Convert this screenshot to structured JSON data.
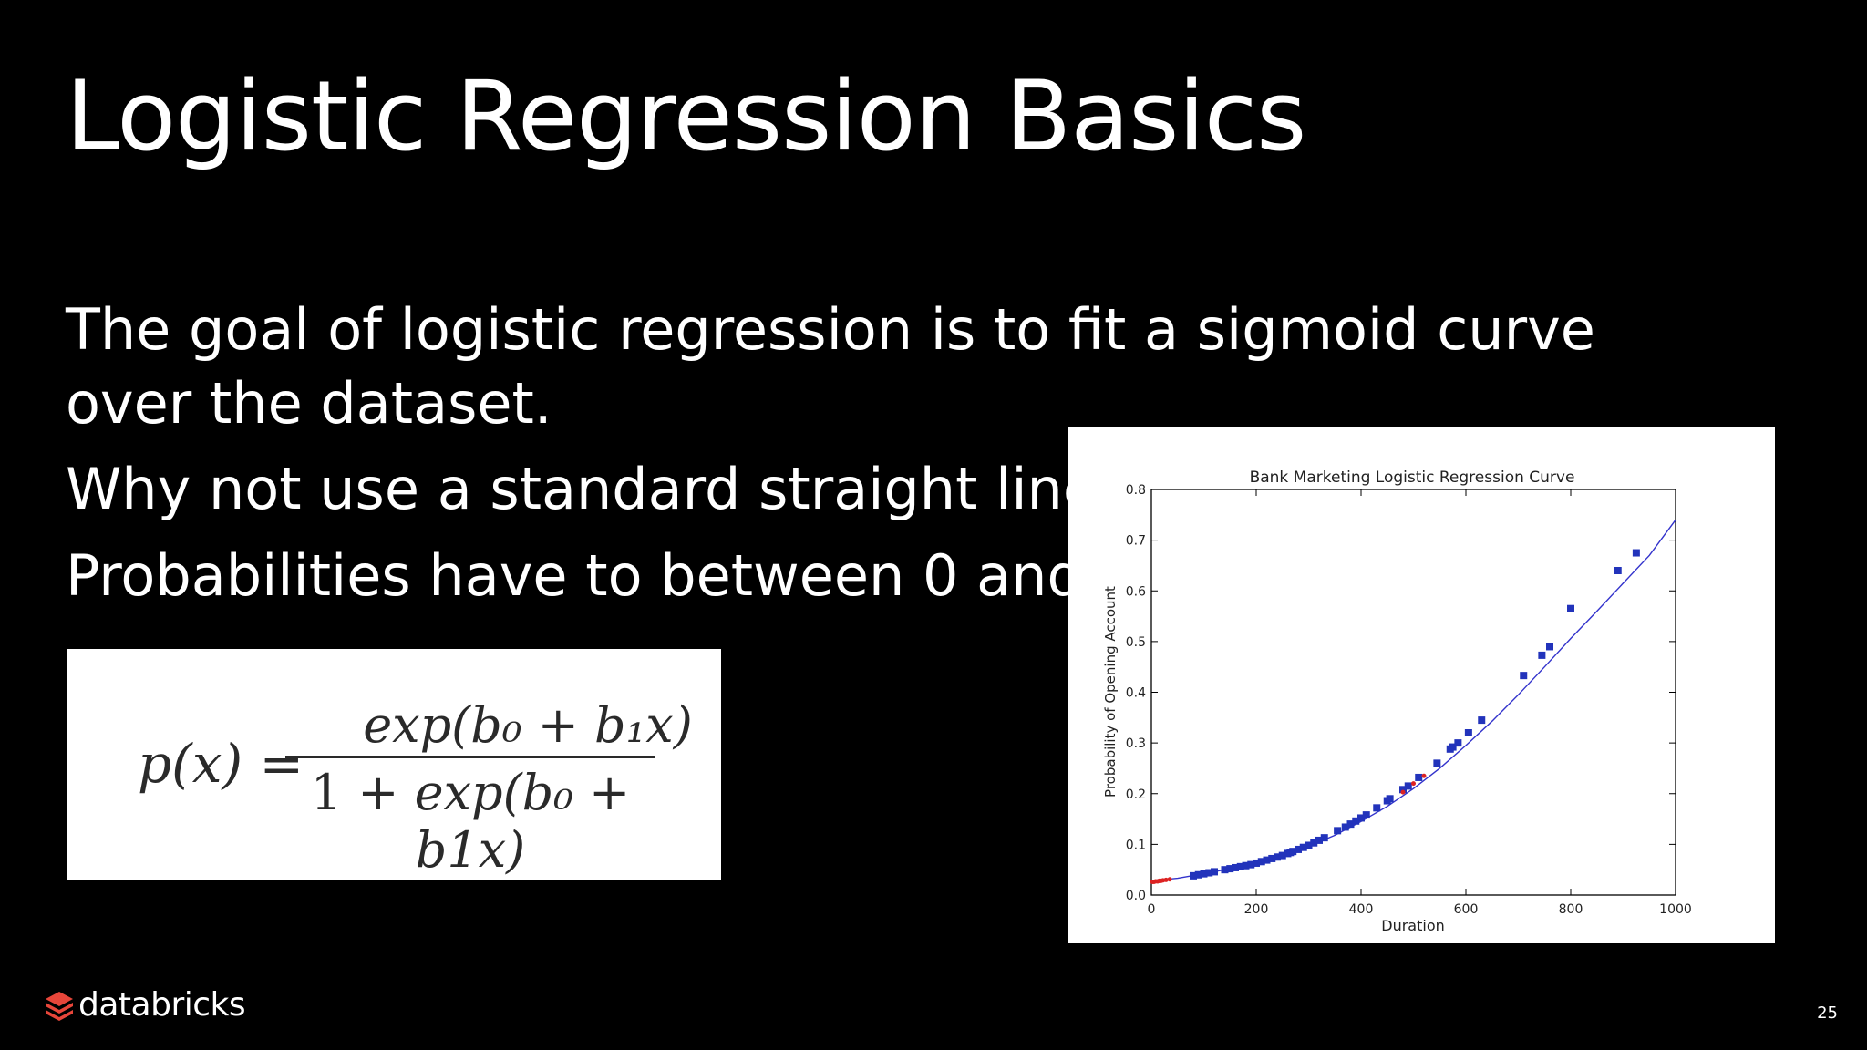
{
  "slide": {
    "title": "Logistic Regression Basics",
    "bullets": [
      "The goal of logistic regression is to fit a sigmoid curve over the dataset.",
      "Why not use a standard straight line?",
      "Probabilities have to between 0 and 1"
    ],
    "page_number": "25"
  },
  "formula": {
    "lhs": "p(x) =",
    "numerator": "exp(b₀ + b₁x)",
    "denominator_lead": "1 + ",
    "denominator_rest": "exp(b₀ + b1x)"
  },
  "logo": {
    "text": "databricks",
    "icon": "databricks-logo-icon",
    "color": "#e8463a"
  },
  "chart_data": {
    "type": "scatter",
    "title": "Bank Marketing Logistic Regression Curve",
    "xlabel": "Duration",
    "ylabel": "Probability of Opening Account",
    "xlim": [
      0,
      1000
    ],
    "ylim": [
      0.0,
      0.8
    ],
    "xticks": [
      "0",
      "200",
      "400",
      "600",
      "800",
      "1000"
    ],
    "yticks": [
      "0.0",
      "0.1",
      "0.2",
      "0.3",
      "0.4",
      "0.5",
      "0.6",
      "0.7",
      "0.8"
    ],
    "grid": false,
    "curve": {
      "color": "#3333cc",
      "x": [
        0,
        50,
        100,
        150,
        200,
        250,
        300,
        350,
        400,
        450,
        500,
        550,
        600,
        650,
        700,
        750,
        800,
        850,
        900,
        950,
        1000
      ],
      "y": [
        0.028,
        0.033,
        0.042,
        0.052,
        0.064,
        0.078,
        0.096,
        0.118,
        0.145,
        0.175,
        0.21,
        0.25,
        0.295,
        0.343,
        0.395,
        0.45,
        0.506,
        0.56,
        0.615,
        0.67,
        0.74
      ]
    },
    "series": [
      {
        "color": "#2233bb",
        "marker": "square",
        "x": [
          80,
          90,
          100,
          110,
          120,
          140,
          150,
          160,
          170,
          180,
          190,
          200,
          210,
          220,
          230,
          240,
          250,
          260,
          265,
          270,
          280,
          290,
          300,
          310,
          320,
          330,
          355,
          370,
          380,
          390,
          400,
          410,
          430,
          450,
          455,
          480,
          490,
          510,
          545,
          570,
          575,
          585,
          605,
          630,
          710,
          745,
          760,
          800,
          890,
          925
        ],
        "y": [
          0.038,
          0.04,
          0.042,
          0.044,
          0.046,
          0.05,
          0.052,
          0.054,
          0.056,
          0.058,
          0.06,
          0.063,
          0.066,
          0.069,
          0.072,
          0.075,
          0.078,
          0.082,
          0.084,
          0.086,
          0.09,
          0.094,
          0.098,
          0.103,
          0.108,
          0.113,
          0.127,
          0.134,
          0.14,
          0.146,
          0.152,
          0.158,
          0.172,
          0.186,
          0.19,
          0.208,
          0.215,
          0.232,
          0.26,
          0.288,
          0.292,
          0.3,
          0.32,
          0.345,
          0.433,
          0.473,
          0.49,
          0.565,
          0.64,
          0.675
        ]
      },
      {
        "color": "#dd2222",
        "marker": "dot",
        "x": [
          2,
          5,
          8,
          12,
          15,
          18,
          22,
          28,
          35,
          480,
          500,
          520
        ],
        "y": [
          0.026,
          0.026,
          0.027,
          0.027,
          0.028,
          0.028,
          0.029,
          0.03,
          0.031,
          0.203,
          0.22,
          0.235
        ]
      }
    ]
  }
}
